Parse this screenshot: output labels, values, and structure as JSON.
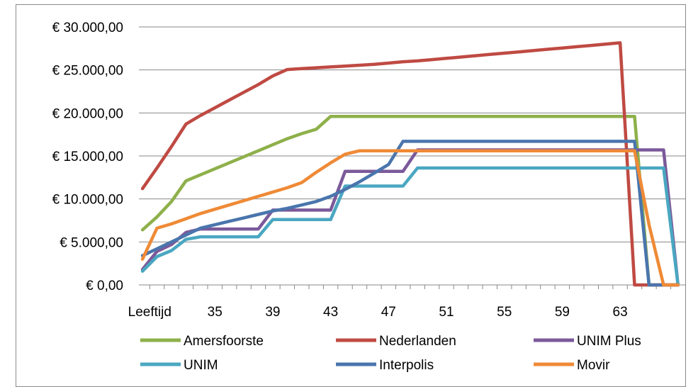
{
  "chart_data": {
    "type": "line",
    "title": "",
    "xlabel": "",
    "ylabel": "",
    "x": [
      30,
      31,
      32,
      33,
      34,
      35,
      36,
      37,
      38,
      39,
      40,
      41,
      42,
      43,
      44,
      45,
      46,
      47,
      48,
      49,
      50,
      51,
      52,
      53,
      54,
      55,
      56,
      57,
      58,
      59,
      60,
      61,
      62,
      63,
      64,
      65,
      66,
      67
    ],
    "x_tick_labels": [
      "Leeftijd",
      "35",
      "39",
      "43",
      "47",
      "51",
      "55",
      "59",
      "63"
    ],
    "x_tick_positions": [
      30.5,
      35,
      39,
      43,
      47,
      51,
      55,
      59,
      63
    ],
    "y_tick_labels": [
      "€ 0,00",
      "€ 5.000,00",
      "€ 10.000,00",
      "€ 15.000,00",
      "€ 20.000,00",
      "€ 25.000,00",
      "€ 30.000,00"
    ],
    "y_ticks": [
      0,
      5000,
      10000,
      15000,
      20000,
      25000,
      30000
    ],
    "ylim": [
      0,
      30000
    ],
    "xlim": [
      29.75,
      67.5
    ],
    "grid": "horizontal",
    "legend_position": "bottom",
    "series": [
      {
        "name": "Amersfoorste",
        "color": "#8eb04a",
        "values": [
          6400,
          7900,
          9700,
          12100,
          12800,
          13500,
          14200,
          14900,
          15600,
          16300,
          17000,
          17600,
          18100,
          19600,
          19600,
          19600,
          19600,
          19600,
          19600,
          19600,
          19600,
          19600,
          19600,
          19600,
          19600,
          19600,
          19600,
          19600,
          19600,
          19600,
          19600,
          19600,
          19600,
          19600,
          19600,
          0,
          0,
          0
        ]
      },
      {
        "name": "Nederlanden",
        "color": "#bf4a43",
        "values": [
          11200,
          13600,
          16100,
          18700,
          19700,
          20600,
          21500,
          22400,
          23300,
          24300,
          25050,
          25150,
          25250,
          25350,
          25450,
          25550,
          25650,
          25800,
          25950,
          26050,
          26200,
          26350,
          26500,
          26650,
          26800,
          26950,
          27100,
          27250,
          27400,
          27550,
          27700,
          27850,
          28000,
          28150,
          0,
          0,
          0,
          0
        ]
      },
      {
        "name": "UNIM Plus",
        "color": "#7b599a",
        "values": [
          1800,
          3900,
          4700,
          6100,
          6500,
          6500,
          6500,
          6500,
          6500,
          8700,
          8700,
          8700,
          8700,
          8700,
          13200,
          13200,
          13200,
          13200,
          13200,
          15700,
          15700,
          15700,
          15700,
          15700,
          15700,
          15700,
          15700,
          15700,
          15700,
          15700,
          15700,
          15700,
          15700,
          15700,
          15700,
          15700,
          15700,
          0
        ]
      },
      {
        "name": "UNIM",
        "color": "#4aa7c1",
        "values": [
          1600,
          3300,
          4000,
          5300,
          5600,
          5600,
          5600,
          5600,
          5600,
          7600,
          7600,
          7600,
          7600,
          7600,
          11500,
          11500,
          11500,
          11500,
          11500,
          13600,
          13600,
          13600,
          13600,
          13600,
          13600,
          13600,
          13600,
          13600,
          13600,
          13600,
          13600,
          13600,
          13600,
          13600,
          13600,
          13600,
          13600,
          0
        ]
      },
      {
        "name": "Interpolis",
        "color": "#4a75ad",
        "values": [
          3400,
          4200,
          5000,
          5800,
          6600,
          7000,
          7400,
          7800,
          8200,
          8600,
          8900,
          9300,
          9700,
          10300,
          11100,
          12000,
          13000,
          14000,
          16700,
          16700,
          16700,
          16700,
          16700,
          16700,
          16700,
          16700,
          16700,
          16700,
          16700,
          16700,
          16700,
          16700,
          16700,
          16700,
          16700,
          0,
          0,
          0
        ]
      },
      {
        "name": "Movir",
        "color": "#ef8a36",
        "values": [
          3000,
          6600,
          7100,
          7700,
          8300,
          8800,
          9300,
          9800,
          10300,
          10800,
          11300,
          11900,
          13100,
          14200,
          15200,
          15600,
          15600,
          15600,
          15600,
          15600,
          15600,
          15600,
          15600,
          15600,
          15600,
          15600,
          15600,
          15600,
          15600,
          15600,
          15600,
          15600,
          15600,
          15600,
          15600,
          7000,
          0,
          0
        ]
      }
    ]
  }
}
